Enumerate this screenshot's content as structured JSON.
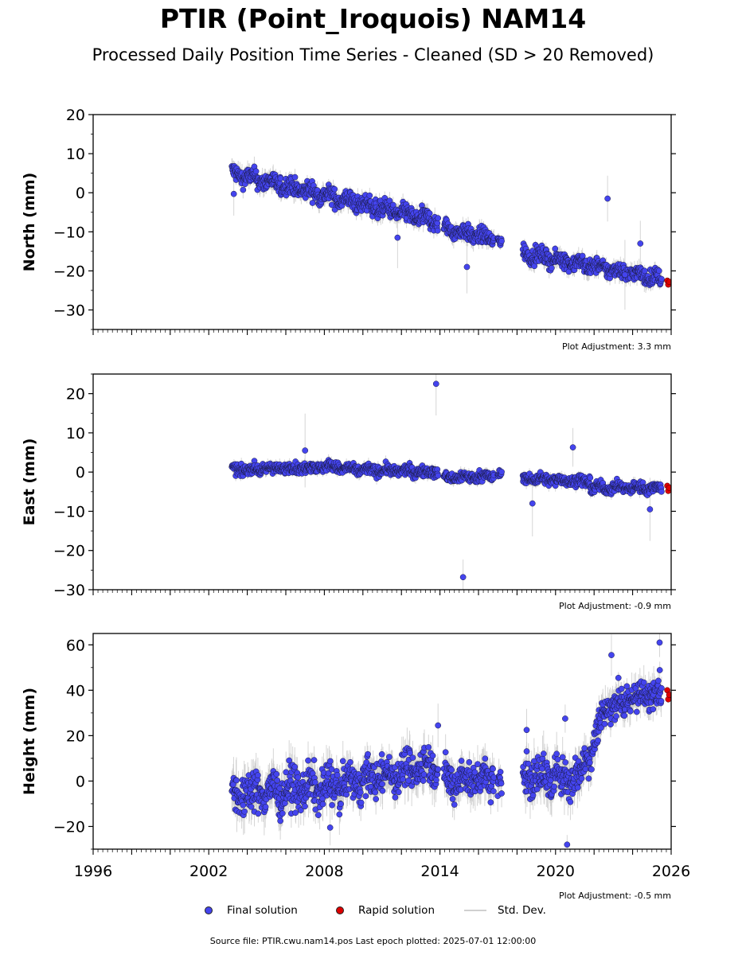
{
  "title": "PTIR (Point_Iroquois) NAM14",
  "subtitle": "Processed Daily Position Time Series - Cleaned (SD > 20 Removed)",
  "legend": {
    "final_label": "Final solution",
    "rapid_label": "Rapid solution",
    "sd_label": "Std. Dev."
  },
  "source_text": "Source file: PTIR.cwu.nam14.pos  Last epoch plotted: 2025-07-01 12:00:00",
  "colors": {
    "final": "#4444ee",
    "rapid": "#dd0000",
    "sd": "#c8c8c8"
  },
  "chart_data": [
    {
      "type": "scatter",
      "panel": "north",
      "ylabel": "North (mm)",
      "ylim": [
        -35,
        20
      ],
      "yticks": [
        20,
        10,
        0,
        -10,
        -20,
        -30
      ],
      "ytick_labels": [
        "20",
        "10",
        "0",
        "−10",
        "−20",
        "−30"
      ],
      "xlim": [
        1996,
        2026
      ],
      "adjustment": "Plot Adjustment: 3.3 mm",
      "trend_segments": [
        {
          "start": 2003.2,
          "end": 2013.9,
          "y0": 5,
          "y1": -7.5,
          "noise": 2.0
        },
        {
          "start": 2014.2,
          "end": 2016.8,
          "y0": -9,
          "y1": -12,
          "noise": 1.8
        },
        {
          "start": 2017.0,
          "end": 2017.2,
          "y0": -12,
          "y1": -13,
          "noise": 1.5
        },
        {
          "start": 2018.3,
          "end": 2025.5,
          "y0": -15.5,
          "y1": -22,
          "noise": 1.8
        }
      ],
      "outliers": [
        [
          2022.7,
          -1.5
        ],
        [
          2023.6,
          -21
        ],
        [
          2024.4,
          -13
        ],
        [
          2015.4,
          -19
        ],
        [
          2011.8,
          -11.5
        ],
        [
          2003.3,
          -0.3
        ]
      ],
      "rapid": [
        [
          2025.8,
          -22.5
        ],
        [
          2025.85,
          -23.5
        ],
        [
          2025.9,
          -22.8
        ]
      ]
    },
    {
      "type": "scatter",
      "panel": "east",
      "ylabel": "East (mm)",
      "ylim": [
        -30,
        25
      ],
      "yticks": [
        20,
        10,
        0,
        -10,
        -20,
        -30
      ],
      "ytick_labels": [
        "20",
        "10",
        "0",
        "−10",
        "−20",
        "−30"
      ],
      "xlim": [
        1996,
        2026
      ],
      "adjustment": "Plot Adjustment: -0.9 mm",
      "trend_segments": [
        {
          "start": 2003.2,
          "end": 2008.8,
          "y0": 0.5,
          "y1": 1.5,
          "noise": 1.2
        },
        {
          "start": 2008.8,
          "end": 2013.9,
          "y0": 0.8,
          "y1": 0,
          "noise": 1.2
        },
        {
          "start": 2014.2,
          "end": 2016.8,
          "y0": -1.5,
          "y1": -1,
          "noise": 1.2
        },
        {
          "start": 2017.0,
          "end": 2017.2,
          "y0": -0.5,
          "y1": -1,
          "noise": 1.0
        },
        {
          "start": 2018.3,
          "end": 2021.8,
          "y0": -1.5,
          "y1": -2.5,
          "noise": 1.2
        },
        {
          "start": 2021.8,
          "end": 2025.5,
          "y0": -4,
          "y1": -4,
          "noise": 1.2
        }
      ],
      "outliers": [
        [
          2013.8,
          22.5
        ],
        [
          2015.2,
          -26.8
        ],
        [
          2020.9,
          6.3
        ],
        [
          2018.8,
          -8
        ],
        [
          2024.9,
          -9.5
        ],
        [
          2007.0,
          5.5
        ]
      ],
      "rapid": [
        [
          2025.8,
          -3.5
        ],
        [
          2025.85,
          -4.8
        ],
        [
          2025.9,
          -4
        ]
      ]
    },
    {
      "type": "scatter",
      "panel": "height",
      "ylabel": "Height (mm)",
      "ylim": [
        -30,
        65
      ],
      "yticks": [
        60,
        40,
        20,
        0,
        -20
      ],
      "ytick_labels": [
        "60",
        "40",
        "20",
        "0",
        "−20"
      ],
      "xlim": [
        1996,
        2026
      ],
      "xticks": [
        1996,
        2002,
        2008,
        2014,
        2020,
        2026
      ],
      "xtick_labels": [
        "1996",
        "2002",
        "2008",
        "2014",
        "2020",
        "2026"
      ],
      "adjustment": "Plot Adjustment: -0.5 mm",
      "trend_segments": [
        {
          "start": 2003.2,
          "end": 2008.8,
          "y0": -6,
          "y1": -2,
          "noise": 8
        },
        {
          "start": 2008.8,
          "end": 2013.9,
          "y0": -2,
          "y1": 8,
          "noise": 7
        },
        {
          "start": 2014.2,
          "end": 2016.8,
          "y0": 0,
          "y1": 2,
          "noise": 7
        },
        {
          "start": 2017.0,
          "end": 2017.2,
          "y0": 0,
          "y1": 0,
          "noise": 6
        },
        {
          "start": 2018.3,
          "end": 2021.3,
          "y0": 2,
          "y1": 2,
          "noise": 8
        },
        {
          "start": 2021.3,
          "end": 2022.4,
          "y0": 5,
          "y1": 25,
          "noise": 7
        },
        {
          "start": 2022.4,
          "end": 2025.5,
          "y0": 32,
          "y1": 40,
          "noise": 6
        }
      ],
      "outliers": [
        [
          2025.4,
          61
        ],
        [
          2022.9,
          55.5
        ],
        [
          2020.6,
          -28
        ],
        [
          2020.5,
          27.5
        ],
        [
          2018.5,
          22.5
        ],
        [
          2008.3,
          -20.5
        ],
        [
          2013.9,
          24.5
        ]
      ],
      "rapid": [
        [
          2025.8,
          40
        ],
        [
          2025.85,
          36
        ],
        [
          2025.9,
          38
        ]
      ]
    }
  ]
}
